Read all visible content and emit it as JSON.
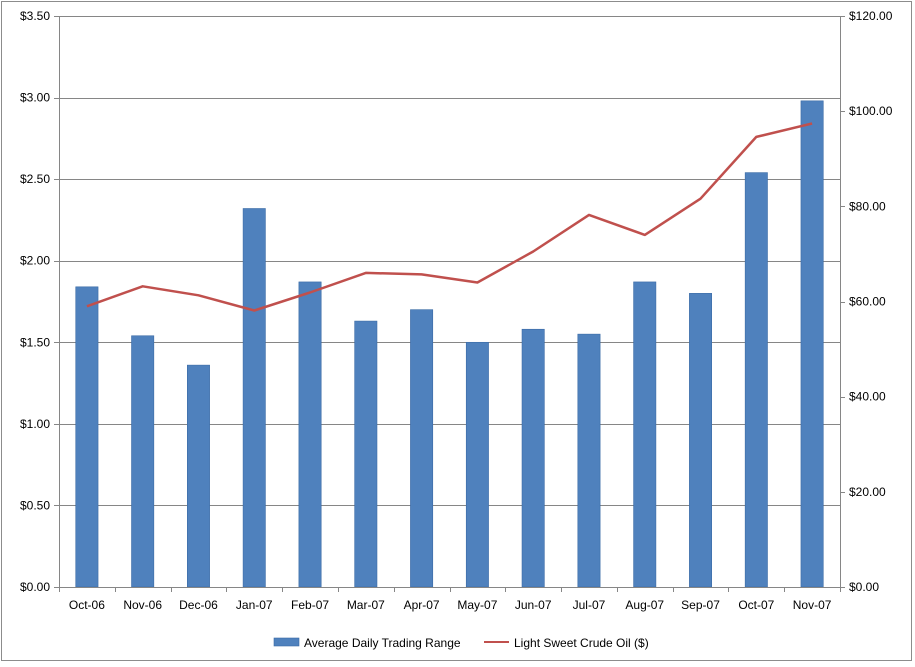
{
  "chart_data": {
    "type": "bar",
    "title": "",
    "categories": [
      "Oct-06",
      "Nov-06",
      "Dec-06",
      "Jan-07",
      "Feb-07",
      "Mar-07",
      "Apr-07",
      "May-07",
      "Jun-07",
      "Jul-07",
      "Aug-07",
      "Sep-07",
      "Oct-07",
      "Nov-07"
    ],
    "series": [
      {
        "name": "Average Daily Trading Range",
        "type": "bar",
        "axis": "left",
        "color": "#4f81bd",
        "values": [
          1.84,
          1.54,
          1.36,
          2.32,
          1.87,
          1.63,
          1.7,
          1.5,
          1.58,
          1.55,
          1.87,
          1.8,
          2.54,
          2.98
        ]
      },
      {
        "name": "Light Sweet Crude Oil ($)",
        "type": "line",
        "axis": "right",
        "color": "#c0504d",
        "values": [
          59.0,
          63.2,
          61.3,
          58.1,
          61.9,
          66.0,
          65.7,
          64.0,
          70.5,
          78.2,
          74.0,
          81.6,
          94.6,
          97.4
        ]
      }
    ],
    "y_left": {
      "min": 0,
      "max": 3.5,
      "step": 0.5,
      "tick_labels": [
        "$0.00",
        "$0.50",
        "$1.00",
        "$1.50",
        "$2.00",
        "$2.50",
        "$3.00",
        "$3.50"
      ]
    },
    "y_right": {
      "min": 0,
      "max": 120,
      "step": 20,
      "tick_labels": [
        "$0.00",
        "$20.00",
        "$40.00",
        "$60.00",
        "$80.00",
        "$100.00",
        "$120.00"
      ]
    },
    "gridlines": "horizontal",
    "legend_position": "bottom"
  }
}
